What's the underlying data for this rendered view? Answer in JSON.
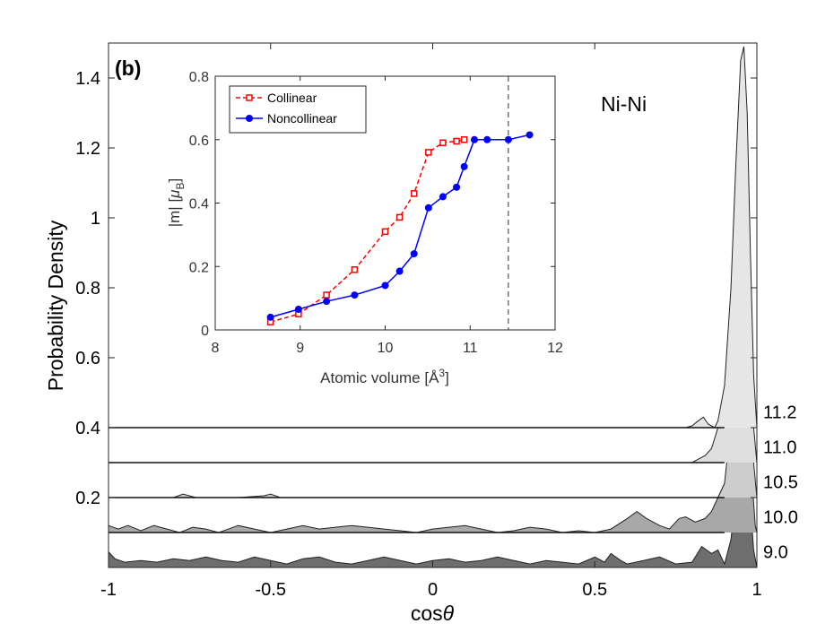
{
  "chart_data": [
    {
      "type": "area",
      "panel_label": "(b)",
      "annotation": "Ni-Ni",
      "xlabel_prefix": "cos",
      "xlabel_symbol": "θ",
      "ylabel": "Probability Density",
      "xlim": [
        -1,
        1
      ],
      "ylim": [
        0,
        1.5
      ],
      "xticks": [
        "-1",
        "-0.5",
        "0",
        "0.5",
        "1"
      ],
      "xtick_values": [
        -1,
        -0.5,
        0,
        0.5,
        1
      ],
      "yticks": [
        "0.2",
        "0.4",
        "0.6",
        "0.8",
        "1",
        "1.2",
        "1.4"
      ],
      "ytick_values": [
        0.2,
        0.4,
        0.6,
        0.8,
        1.0,
        1.2,
        1.4
      ],
      "series": [
        {
          "name": "9.0",
          "baseline": 0.0,
          "fill": "#6e6e6e",
          "points": [
            [
              -1.0,
              0.045
            ],
            [
              -0.98,
              0.025
            ],
            [
              -0.95,
              0.015
            ],
            [
              -0.9,
              0.02
            ],
            [
              -0.85,
              0.015
            ],
            [
              -0.8,
              0.025
            ],
            [
              -0.75,
              0.02
            ],
            [
              -0.7,
              0.03
            ],
            [
              -0.65,
              0.02
            ],
            [
              -0.6,
              0.015
            ],
            [
              -0.55,
              0.03
            ],
            [
              -0.5,
              0.02
            ],
            [
              -0.45,
              0.01
            ],
            [
              -0.4,
              0.025
            ],
            [
              -0.35,
              0.03
            ],
            [
              -0.3,
              0.015
            ],
            [
              -0.25,
              0.01
            ],
            [
              -0.2,
              0.02
            ],
            [
              -0.15,
              0.03
            ],
            [
              -0.1,
              0.02
            ],
            [
              -0.05,
              0.01
            ],
            [
              0.0,
              0.02
            ],
            [
              0.05,
              0.025
            ],
            [
              0.1,
              0.015
            ],
            [
              0.15,
              0.02
            ],
            [
              0.2,
              0.03
            ],
            [
              0.25,
              0.02
            ],
            [
              0.3,
              0.01
            ],
            [
              0.35,
              0.02
            ],
            [
              0.4,
              0.015
            ],
            [
              0.45,
              0.01
            ],
            [
              0.5,
              0.03
            ],
            [
              0.53,
              0.015
            ],
            [
              0.55,
              0.04
            ],
            [
              0.58,
              0.02
            ],
            [
              0.6,
              0.01
            ],
            [
              0.65,
              0.02
            ],
            [
              0.7,
              0.03
            ],
            [
              0.75,
              0.01
            ],
            [
              0.8,
              0.015
            ],
            [
              0.83,
              0.06
            ],
            [
              0.86,
              0.04
            ],
            [
              0.88,
              0.05
            ],
            [
              0.9,
              0.01
            ],
            [
              0.92,
              0.08
            ],
            [
              0.94,
              0.25
            ],
            [
              0.96,
              0.47
            ],
            [
              0.97,
              0.38
            ],
            [
              0.98,
              0.18
            ],
            [
              0.99,
              0.05
            ],
            [
              1.0,
              0.0
            ]
          ]
        },
        {
          "name": "10.0",
          "baseline": 0.1,
          "fill": "#a8a8a8",
          "points": [
            [
              -1.0,
              0.12
            ],
            [
              -0.97,
              0.11
            ],
            [
              -0.94,
              0.12
            ],
            [
              -0.9,
              0.105
            ],
            [
              -0.86,
              0.12
            ],
            [
              -0.82,
              0.11
            ],
            [
              -0.78,
              0.1
            ],
            [
              -0.74,
              0.115
            ],
            [
              -0.7,
              0.11
            ],
            [
              -0.66,
              0.1
            ],
            [
              -0.6,
              0.12
            ],
            [
              -0.55,
              0.11
            ],
            [
              -0.5,
              0.1
            ],
            [
              -0.45,
              0.11
            ],
            [
              -0.4,
              0.12
            ],
            [
              -0.35,
              0.11
            ],
            [
              -0.3,
              0.115
            ],
            [
              -0.25,
              0.12
            ],
            [
              -0.2,
              0.115
            ],
            [
              -0.15,
              0.11
            ],
            [
              -0.1,
              0.105
            ],
            [
              -0.05,
              0.1
            ],
            [
              0.0,
              0.11
            ],
            [
              0.05,
              0.115
            ],
            [
              0.1,
              0.12
            ],
            [
              0.15,
              0.11
            ],
            [
              0.2,
              0.1
            ],
            [
              0.25,
              0.105
            ],
            [
              0.3,
              0.115
            ],
            [
              0.35,
              0.11
            ],
            [
              0.4,
              0.1
            ],
            [
              0.45,
              0.105
            ],
            [
              0.5,
              0.1
            ],
            [
              0.55,
              0.11
            ],
            [
              0.6,
              0.14
            ],
            [
              0.63,
              0.16
            ],
            [
              0.66,
              0.14
            ],
            [
              0.7,
              0.12
            ],
            [
              0.73,
              0.11
            ],
            [
              0.76,
              0.14
            ],
            [
              0.78,
              0.145
            ],
            [
              0.81,
              0.13
            ],
            [
              0.84,
              0.14
            ],
            [
              0.86,
              0.16
            ],
            [
              0.88,
              0.2
            ],
            [
              0.9,
              0.24
            ],
            [
              0.92,
              0.35
            ],
            [
              0.94,
              0.58
            ],
            [
              0.955,
              0.78
            ],
            [
              0.965,
              0.7
            ],
            [
              0.975,
              0.5
            ],
            [
              0.985,
              0.25
            ],
            [
              0.995,
              0.12
            ],
            [
              1.0,
              0.1
            ]
          ]
        },
        {
          "name": "10.5",
          "baseline": 0.2,
          "fill": "#cdcdcd",
          "points": [
            [
              -1.0,
              0.2
            ],
            [
              -0.8,
              0.2
            ],
            [
              -0.77,
              0.21
            ],
            [
              -0.73,
              0.2
            ],
            [
              -0.6,
              0.2
            ],
            [
              -0.52,
              0.205
            ],
            [
              -0.5,
              0.21
            ],
            [
              -0.47,
              0.2
            ],
            [
              -0.2,
              0.2
            ],
            [
              0.88,
              0.2
            ],
            [
              0.9,
              0.24
            ],
            [
              0.93,
              0.5
            ],
            [
              0.95,
              0.9
            ],
            [
              0.96,
              1.2
            ],
            [
              0.97,
              1.0
            ],
            [
              0.98,
              0.6
            ],
            [
              0.99,
              0.3
            ],
            [
              1.0,
              0.2
            ]
          ]
        },
        {
          "name": "11.0",
          "baseline": 0.3,
          "fill": "#dedede",
          "points": [
            [
              -1.0,
              0.3
            ],
            [
              0.8,
              0.3
            ],
            [
              0.82,
              0.31
            ],
            [
              0.84,
              0.32
            ],
            [
              0.86,
              0.34
            ],
            [
              0.88,
              0.4
            ],
            [
              0.9,
              0.48
            ],
            [
              0.92,
              0.75
            ],
            [
              0.94,
              1.05
            ],
            [
              0.955,
              1.3
            ],
            [
              0.965,
              1.1
            ],
            [
              0.98,
              0.7
            ],
            [
              0.99,
              0.4
            ],
            [
              1.0,
              0.3
            ]
          ]
        },
        {
          "name": "11.2",
          "baseline": 0.4,
          "fill": "#e6e6e6",
          "points": [
            [
              -1.0,
              0.4
            ],
            [
              0.78,
              0.4
            ],
            [
              0.8,
              0.405
            ],
            [
              0.82,
              0.42
            ],
            [
              0.835,
              0.43
            ],
            [
              0.85,
              0.41
            ],
            [
              0.87,
              0.4
            ],
            [
              0.88,
              0.42
            ],
            [
              0.9,
              0.52
            ],
            [
              0.92,
              0.8
            ],
            [
              0.935,
              1.15
            ],
            [
              0.95,
              1.45
            ],
            [
              0.96,
              1.49
            ],
            [
              0.97,
              1.3
            ],
            [
              0.98,
              0.9
            ],
            [
              0.99,
              0.55
            ],
            [
              1.0,
              0.4
            ]
          ]
        }
      ]
    },
    {
      "type": "line",
      "xlabel_prefix": "Atomic volume [Å",
      "xlabel_sup": "3",
      "xlabel_suffix": "]",
      "ylabel_prefix": "|m| [",
      "ylabel_mu": "μ",
      "ylabel_sub": "B",
      "ylabel_suffix": "]",
      "xlim": [
        8,
        12
      ],
      "ylim": [
        0,
        0.8
      ],
      "xticks": [
        "8",
        "9",
        "10",
        "11",
        "12"
      ],
      "xtick_values": [
        8,
        9,
        10,
        11,
        12
      ],
      "yticks": [
        "0",
        "0.2",
        "0.4",
        "0.6",
        "0.8"
      ],
      "ytick_values": [
        0,
        0.2,
        0.4,
        0.6,
        0.8
      ],
      "vline_x": 11.45,
      "series": [
        {
          "name": "Collinear",
          "color": "#ff0000",
          "marker": "open-square",
          "linestyle": "dashed",
          "x": [
            8.65,
            8.98,
            9.31,
            9.64,
            10.0,
            10.17,
            10.34,
            10.51,
            10.68,
            10.84,
            10.93
          ],
          "y": [
            0.025,
            0.05,
            0.11,
            0.19,
            0.31,
            0.355,
            0.43,
            0.56,
            0.59,
            0.595,
            0.6
          ]
        },
        {
          "name": "Noncollinear",
          "color": "#0000ff",
          "marker": "filled-circle",
          "linestyle": "solid",
          "x": [
            8.65,
            8.98,
            9.31,
            9.64,
            10.0,
            10.17,
            10.34,
            10.51,
            10.68,
            10.84,
            10.93,
            11.05,
            11.2,
            11.45,
            11.7
          ],
          "y": [
            0.04,
            0.065,
            0.09,
            0.11,
            0.14,
            0.185,
            0.24,
            0.385,
            0.42,
            0.45,
            0.515,
            0.6,
            0.6,
            0.6,
            0.615
          ]
        }
      ]
    }
  ]
}
